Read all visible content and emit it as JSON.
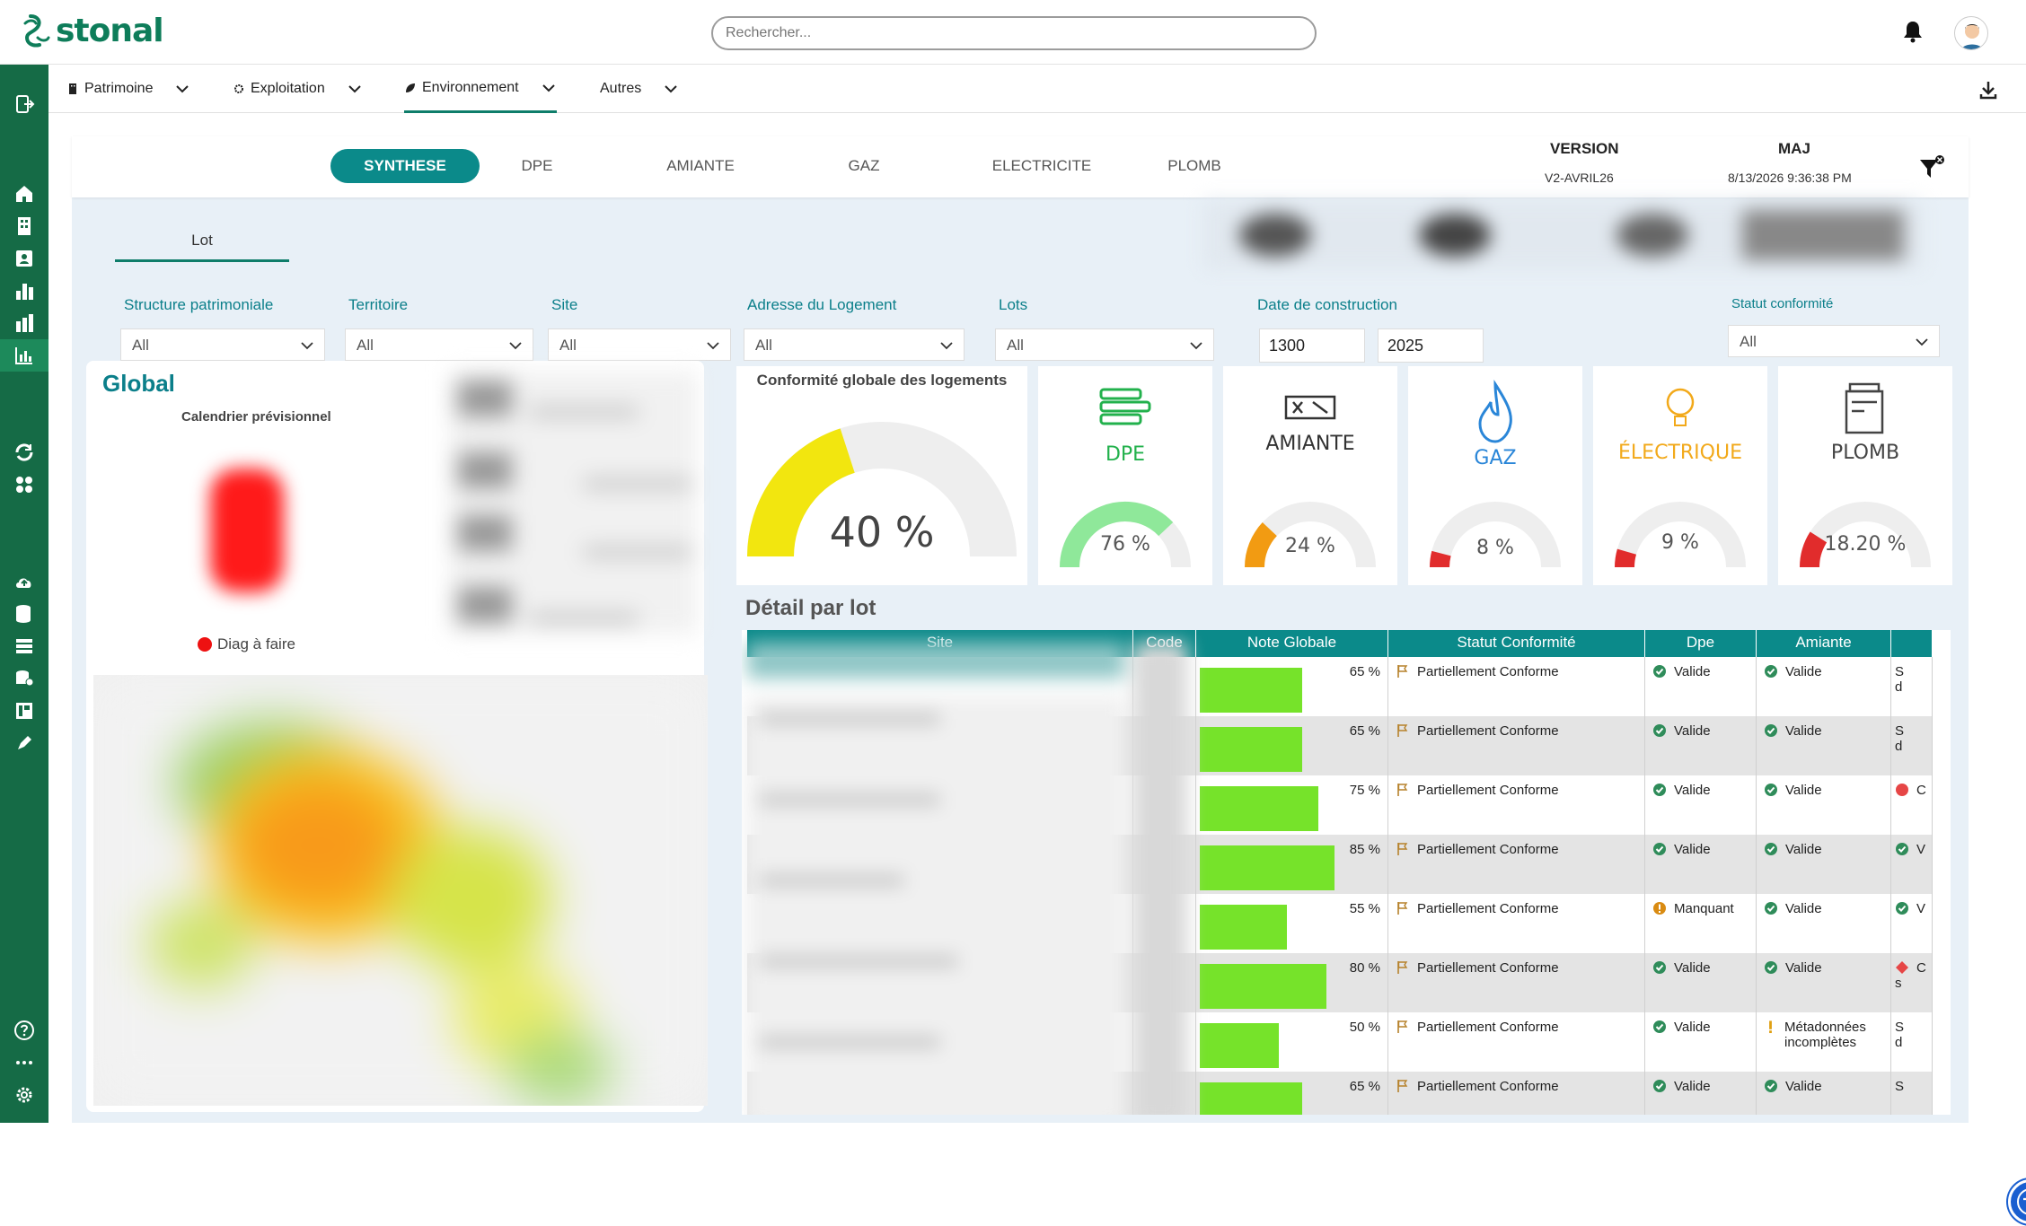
{
  "app": {
    "brand": "stonal",
    "search_placeholder": "Rechercher...",
    "accent": "#0b8a8a",
    "brand_color": "#156b46"
  },
  "menu": [
    {
      "label": "Patrimoine",
      "icon": "building-icon"
    },
    {
      "label": "Exploitation",
      "icon": "settings-cog-icon"
    },
    {
      "label": "Environnement",
      "icon": "leaf-icon"
    },
    {
      "label": "Autres",
      "icon": ""
    }
  ],
  "tabs": [
    "SYNTHESE",
    "DPE",
    "AMIANTE",
    "GAZ",
    "ELECTRICITE",
    "PLOMB"
  ],
  "active_tab": "SYNTHESE",
  "version": {
    "label": "VERSION",
    "value": "V2-AVRIL26"
  },
  "maj": {
    "label": "MAJ",
    "value": "8/13/2026 9:36:38 PM"
  },
  "lot_tab": "Lot",
  "filters": {
    "structure": {
      "label": "Structure patrimoniale",
      "value": "All"
    },
    "territoire": {
      "label": "Territoire",
      "value": "All"
    },
    "site": {
      "label": "Site",
      "value": "All"
    },
    "adresse": {
      "label": "Adresse du Logement",
      "value": "All"
    },
    "lots": {
      "label": "Lots",
      "value": "All"
    },
    "date": {
      "label": "Date de construction",
      "from": "1300",
      "to": "2025"
    },
    "statut": {
      "label": "Statut conformité",
      "value": "All"
    }
  },
  "global": {
    "title": "Global",
    "calendar_title": "Calendrier prévisionnel",
    "legend": "Diag à faire"
  },
  "conformite": {
    "title": "Conformité globale des logements",
    "value": "40 %",
    "fraction": 0.4,
    "color": "#f2e60f"
  },
  "categories": [
    {
      "name": "DPE",
      "value": "76 %",
      "fraction": 0.76,
      "color": "#22b14c",
      "arc": "#8fe89a",
      "icon": "dpe-icon"
    },
    {
      "name": "AMIANTE",
      "value": "24 %",
      "fraction": 0.24,
      "color": "#333333",
      "arc": "#f29b12",
      "icon": "amiante-icon"
    },
    {
      "name": "GAZ",
      "value": "8 %",
      "fraction": 0.08,
      "color": "#2a86d8",
      "arc": "#e12c2c",
      "icon": "gaz-flame-icon"
    },
    {
      "name": "ÉLECTRIQUE",
      "value": "9 %",
      "fraction": 0.09,
      "color": "#f2a91a",
      "arc": "#e12c2c",
      "icon": "lightbulb-icon"
    },
    {
      "name": "PLOMB",
      "value": "18.20 %",
      "fraction": 0.182,
      "color": "#444444",
      "arc": "#e12c2c",
      "icon": "plomb-icon"
    }
  ],
  "detail": {
    "title": "Détail par lot",
    "columns": [
      "Site",
      "Code",
      "Note Globale",
      "Statut Conformité",
      "Dpe",
      "Amiante"
    ],
    "rows": [
      {
        "note": "65 %",
        "note_value": 0.65,
        "statut": "Partiellement Conforme",
        "dpe": "Valide",
        "dpe_state": "ok",
        "amiante": "Valide",
        "amiante_state": "ok",
        "extra": "S",
        "extra2": "d",
        "extra_state": "none"
      },
      {
        "note": "65 %",
        "note_value": 0.65,
        "statut": "Partiellement Conforme",
        "dpe": "Valide",
        "dpe_state": "ok",
        "amiante": "Valide",
        "amiante_state": "ok",
        "extra": "S",
        "extra2": "d",
        "extra_state": "none"
      },
      {
        "note": "75 %",
        "note_value": 0.75,
        "statut": "Partiellement Conforme",
        "dpe": "Valide",
        "dpe_state": "ok",
        "amiante": "Valide",
        "amiante_state": "ok",
        "extra": "C",
        "extra2": "",
        "extra_state": "red"
      },
      {
        "note": "85 %",
        "note_value": 0.85,
        "statut": "Partiellement Conforme",
        "dpe": "Valide",
        "dpe_state": "ok",
        "amiante": "Valide",
        "amiante_state": "ok",
        "extra": "V",
        "extra2": "",
        "extra_state": "ok"
      },
      {
        "note": "55 %",
        "note_value": 0.55,
        "statut": "Partiellement Conforme",
        "dpe": "Manquant",
        "dpe_state": "warn",
        "amiante": "Valide",
        "amiante_state": "ok",
        "extra": "V",
        "extra2": "",
        "extra_state": "ok"
      },
      {
        "note": "80 %",
        "note_value": 0.8,
        "statut": "Partiellement Conforme",
        "dpe": "Valide",
        "dpe_state": "ok",
        "amiante": "Valide",
        "amiante_state": "ok",
        "extra": "C",
        "extra2": "s",
        "extra_state": "diamond"
      },
      {
        "note": "50 %",
        "note_value": 0.5,
        "statut": "Partiellement Conforme",
        "dpe": "Valide",
        "dpe_state": "ok",
        "amiante": "Métadonnées incomplètes",
        "amiante_state": "exclaim",
        "extra": "S",
        "extra2": "d",
        "extra_state": "none"
      },
      {
        "note": "65 %",
        "note_value": 0.65,
        "statut": "Partiellement Conforme",
        "dpe": "Valide",
        "dpe_state": "ok",
        "amiante": "Valide",
        "amiante_state": "ok",
        "extra": "S",
        "extra2": "",
        "extra_state": "none"
      }
    ]
  }
}
